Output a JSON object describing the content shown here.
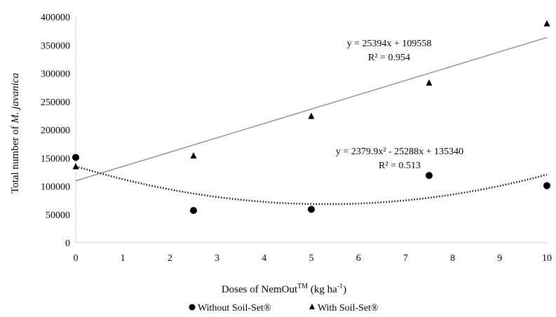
{
  "chart_data": {
    "type": "scatter",
    "xlabel_main": "Doses of NemOut",
    "xlabel_sup": "TM",
    "xlabel_unit": " (kg ha",
    "xlabel_unit_sup": "-1",
    "xlabel_close": ")",
    "ylabel_main": "Total number of ",
    "ylabel_species": "M. javanica",
    "xlim": [
      0,
      10
    ],
    "ylim": [
      0,
      400000
    ],
    "x_ticks": [
      "0",
      "1",
      "2",
      "3",
      "4",
      "5",
      "6",
      "7",
      "8",
      "9",
      "10"
    ],
    "y_ticks": [
      "0",
      "50000",
      "100000",
      "150000",
      "200000",
      "250000",
      "300000",
      "350000",
      "400000"
    ],
    "series": [
      {
        "name": "Without Soil-Set®",
        "marker": "circle",
        "x": [
          0,
          2.5,
          5,
          7.5,
          10
        ],
        "y": [
          151000,
          57000,
          59000,
          119000,
          101000
        ],
        "trendline": {
          "type": "polynomial",
          "equation": "y = 2379.9x² - 25288x + 135340",
          "r2": "R² = 0.513",
          "a": 2379.9,
          "b": -25288,
          "c": 135340,
          "style": "dotted"
        }
      },
      {
        "name": "With Soil-Set®",
        "marker": "triangle",
        "x": [
          0,
          2.5,
          5,
          7.5,
          10
        ],
        "y": [
          135000,
          154000,
          224000,
          283000,
          388000
        ],
        "trendline": {
          "type": "linear",
          "equation": "y = 25394x + 109558",
          "r2": "R² = 0.954",
          "slope": 25394,
          "intercept": 109558,
          "style": "solid"
        }
      }
    ],
    "legend_position": "bottom",
    "grid": false
  },
  "colors": {
    "axis": "#d0d0d0",
    "marker": "#000000",
    "linear_trend": "#8c8c8c",
    "poly_trend": "#000000"
  }
}
